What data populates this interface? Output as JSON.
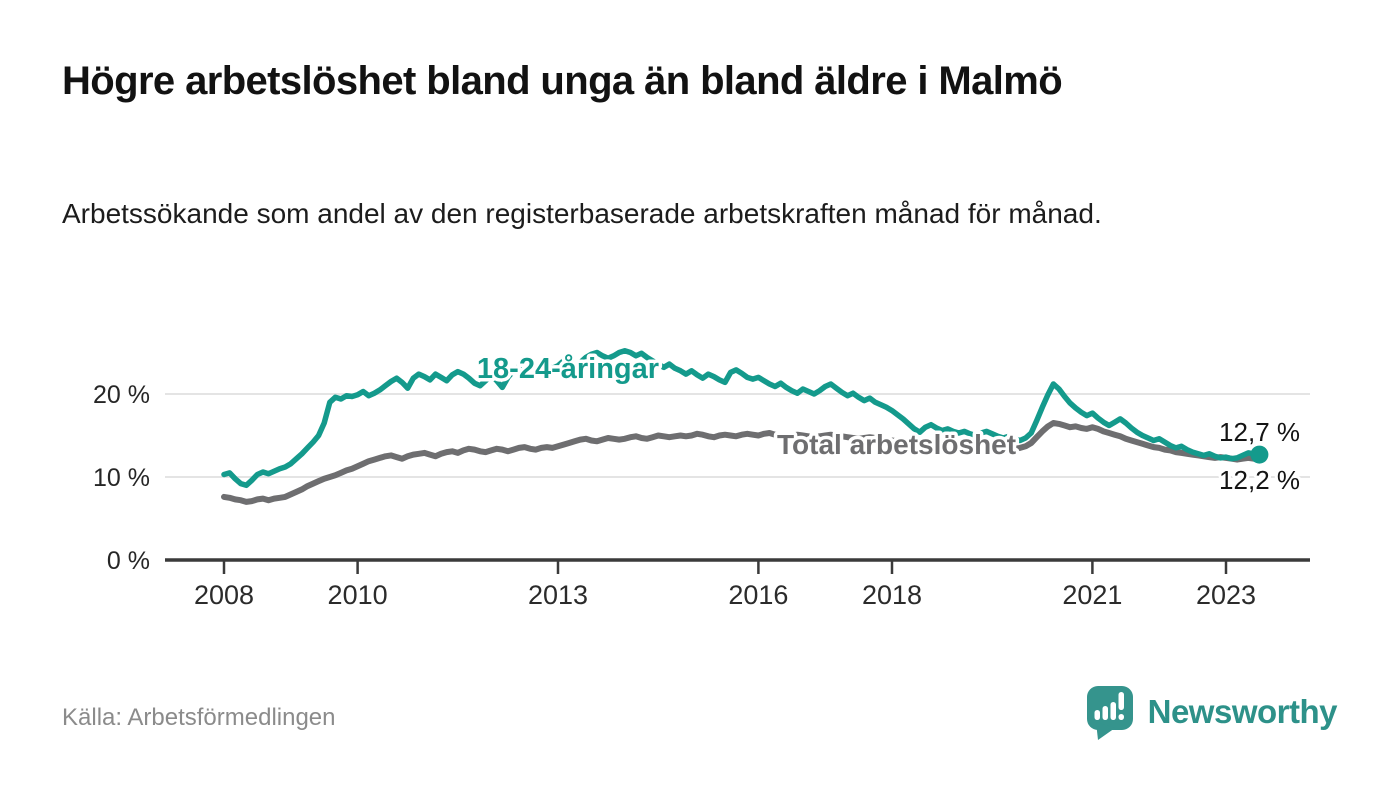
{
  "header": {
    "title": "Högre arbetslöshet bland unga än bland äldre i Malmö",
    "subtitle": "Arbetssökande som andel av den registerbaserade arbetskraften månad för månad."
  },
  "footer": {
    "source": "Källa: Arbetsförmedlingen",
    "logo_text": "Newsworthy"
  },
  "colors": {
    "accent_teal": "#149a8c",
    "line_gray": "#6e6e70",
    "logo_teal": "#35948d",
    "gridline": "#e4e4e4",
    "axis": "#3a3a3a",
    "label_dark": "#141414"
  },
  "chart_data": {
    "type": "line",
    "unit": "%",
    "grid": "horizontal",
    "x_axis": {
      "ticks": [
        2008,
        2010,
        2013,
        2016,
        2018,
        2021,
        2023
      ],
      "tick_labels": [
        "2008",
        "2010",
        "2013",
        "2016",
        "2018",
        "2021",
        "2023"
      ]
    },
    "y_axis": {
      "ticks": [
        0,
        10,
        20
      ],
      "tick_labels": [
        "0 %",
        "10 %",
        "20 %"
      ],
      "range": [
        0,
        27
      ]
    },
    "series": [
      {
        "id": "young",
        "name": "18-24-åringar",
        "color": "#149a8c",
        "start_year": 2008,
        "points_per_year": 12,
        "end_value": 12.7,
        "end_label": "12,7 %",
        "end_dot": true,
        "values": [
          10.3,
          10.5,
          9.8,
          9.2,
          9.0,
          9.6,
          10.3,
          10.6,
          10.4,
          10.7,
          11.0,
          11.2,
          11.6,
          12.2,
          12.8,
          13.5,
          14.2,
          15.0,
          16.5,
          19.0,
          19.6,
          19.4,
          19.8,
          19.7,
          19.9,
          20.3,
          19.8,
          20.1,
          20.5,
          21.0,
          21.5,
          21.9,
          21.4,
          20.7,
          21.9,
          22.4,
          22.1,
          21.7,
          22.4,
          22.0,
          21.6,
          22.3,
          22.7,
          22.4,
          21.9,
          21.3,
          21.0,
          21.6,
          22.2,
          21.6,
          20.8,
          22.0,
          22.8,
          23.3,
          23.6,
          23.2,
          22.9,
          23.3,
          23.5,
          23.1,
          23.4,
          24.0,
          23.6,
          23.2,
          23.8,
          24.4,
          24.8,
          25.0,
          24.6,
          24.3,
          24.6,
          25.0,
          25.2,
          25.0,
          24.6,
          24.9,
          24.4,
          24.0,
          23.6,
          23.2,
          23.6,
          23.1,
          22.8,
          22.4,
          22.8,
          22.3,
          21.9,
          22.4,
          22.1,
          21.7,
          21.4,
          22.6,
          22.9,
          22.5,
          22.0,
          21.8,
          22.0,
          21.6,
          21.2,
          20.9,
          21.3,
          20.8,
          20.4,
          20.1,
          20.6,
          20.3,
          20.0,
          20.4,
          20.9,
          21.2,
          20.7,
          20.2,
          19.8,
          20.1,
          19.6,
          19.2,
          19.5,
          19.0,
          18.7,
          18.4,
          18.0,
          17.5,
          17.0,
          16.4,
          15.8,
          15.4,
          16.0,
          16.3,
          15.9,
          15.6,
          15.8,
          15.5,
          15.3,
          15.5,
          15.2,
          15.0,
          15.3,
          15.5,
          15.2,
          14.9,
          14.7,
          14.9,
          14.6,
          14.4,
          14.7,
          15.3,
          16.8,
          18.4,
          19.9,
          21.2,
          20.6,
          19.7,
          18.9,
          18.3,
          17.8,
          17.4,
          17.7,
          17.1,
          16.6,
          16.2,
          16.6,
          17.0,
          16.5,
          15.9,
          15.4,
          15.0,
          14.7,
          14.4,
          14.6,
          14.2,
          13.8,
          13.5,
          13.7,
          13.3,
          13.0,
          12.8,
          12.6,
          12.8,
          12.5,
          12.3,
          12.4,
          12.2,
          12.3,
          12.6,
          12.9,
          12.8,
          12.7
        ]
      },
      {
        "id": "total",
        "name": "Total arbetslöshet",
        "color": "#6e6e70",
        "start_year": 2008,
        "points_per_year": 12,
        "end_value": 12.2,
        "end_label": "12,2 %",
        "end_dot": false,
        "values": [
          7.6,
          7.5,
          7.3,
          7.2,
          7.0,
          7.1,
          7.3,
          7.4,
          7.2,
          7.4,
          7.5,
          7.6,
          7.9,
          8.2,
          8.5,
          8.9,
          9.2,
          9.5,
          9.8,
          10.0,
          10.2,
          10.5,
          10.8,
          11.0,
          11.3,
          11.6,
          11.9,
          12.1,
          12.3,
          12.5,
          12.6,
          12.4,
          12.2,
          12.5,
          12.7,
          12.8,
          12.9,
          12.7,
          12.5,
          12.8,
          13.0,
          13.1,
          12.9,
          13.2,
          13.4,
          13.3,
          13.1,
          13.0,
          13.2,
          13.4,
          13.3,
          13.1,
          13.3,
          13.5,
          13.6,
          13.4,
          13.3,
          13.5,
          13.6,
          13.5,
          13.7,
          13.9,
          14.1,
          14.3,
          14.5,
          14.6,
          14.4,
          14.3,
          14.5,
          14.7,
          14.6,
          14.5,
          14.6,
          14.8,
          14.9,
          14.7,
          14.6,
          14.8,
          15.0,
          14.9,
          14.8,
          14.9,
          15.0,
          14.9,
          15.0,
          15.2,
          15.1,
          14.9,
          14.8,
          15.0,
          15.1,
          15.0,
          14.9,
          15.1,
          15.2,
          15.1,
          15.0,
          15.2,
          15.3,
          15.1,
          15.0,
          14.9,
          15.0,
          15.1,
          15.0,
          14.9,
          14.8,
          14.9,
          15.0,
          15.1,
          15.0,
          14.9,
          14.8,
          14.7,
          14.6,
          14.7,
          14.8,
          14.7,
          14.6,
          14.5,
          14.4,
          14.3,
          14.2,
          14.1,
          14.0,
          13.9,
          14.0,
          14.1,
          14.0,
          13.9,
          13.8,
          13.7,
          13.6,
          13.7,
          13.6,
          13.5,
          13.6,
          13.7,
          13.6,
          13.5,
          13.4,
          13.5,
          13.4,
          13.5,
          13.7,
          14.1,
          14.8,
          15.5,
          16.1,
          16.5,
          16.4,
          16.2,
          16.0,
          16.1,
          15.9,
          15.8,
          16.0,
          15.8,
          15.5,
          15.3,
          15.1,
          14.9,
          14.6,
          14.4,
          14.2,
          14.0,
          13.8,
          13.6,
          13.5,
          13.3,
          13.2,
          13.0,
          12.9,
          12.8,
          12.7,
          12.6,
          12.5,
          12.4,
          12.3,
          12.4,
          12.3,
          12.2,
          12.1,
          12.2,
          12.3,
          12.2,
          12.2
        ]
      }
    ]
  }
}
